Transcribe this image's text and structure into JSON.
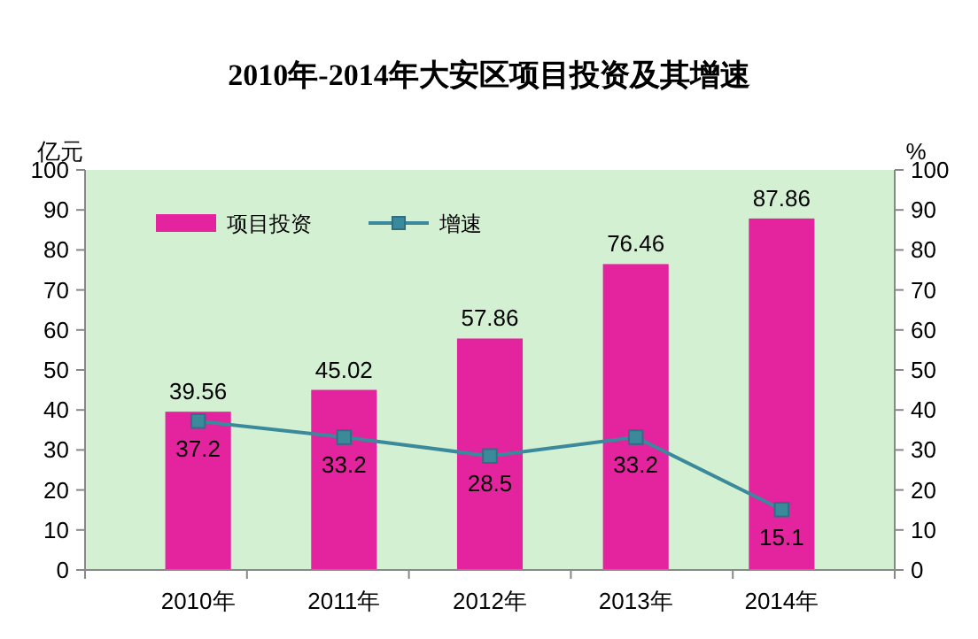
{
  "chart_data": {
    "type": "bar",
    "title": "2010年-2014年大安区项目投资及其增速",
    "ylabel": "亿元",
    "y2label": "%",
    "categories": [
      "2010年",
      "2011年",
      "2012年",
      "2013年",
      "2014年"
    ],
    "series": [
      {
        "name": "项目投资",
        "color": "#e4239f",
        "values": [
          39.56,
          45.02,
          57.86,
          76.46,
          87.86
        ]
      },
      {
        "name": "增速",
        "type": "line",
        "axis": "y2",
        "color": "#3a8a9c",
        "marker": "square",
        "values": [
          37.2,
          33.2,
          28.5,
          33.2,
          15.1
        ]
      }
    ],
    "ylim": [
      0,
      100
    ],
    "yticks": [
      0,
      10,
      20,
      30,
      40,
      50,
      60,
      70,
      80,
      90,
      100
    ],
    "y2lim": [
      0,
      100
    ],
    "y2ticks": [
      0,
      10,
      20,
      30,
      40,
      50,
      60,
      70,
      80,
      90,
      100
    ],
    "data_labels": true,
    "legend": "top left",
    "grid": false
  }
}
